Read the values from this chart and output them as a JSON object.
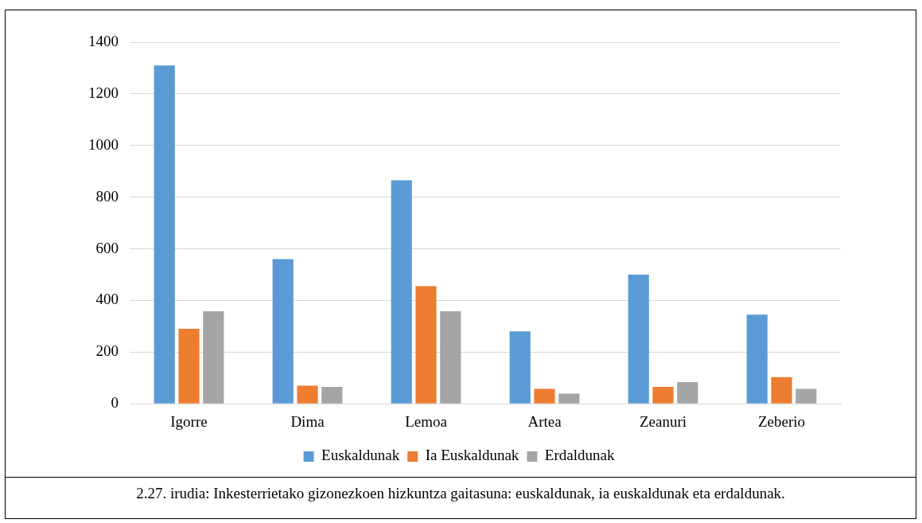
{
  "chart_data": {
    "type": "bar",
    "categories": [
      "Igorre",
      "Dima",
      "Lemoa",
      "Artea",
      "Zeanuri",
      "Zeberio"
    ],
    "series": [
      {
        "name": "Euskaldunak",
        "color": "#5b9bd5",
        "values": [
          1310,
          560,
          865,
          280,
          500,
          345
        ]
      },
      {
        "name": "Ia Euskaldunak",
        "color": "#ed7d31",
        "values": [
          290,
          70,
          455,
          58,
          65,
          103
        ]
      },
      {
        "name": "Erdaldunak",
        "color": "#a5a5a5",
        "values": [
          358,
          65,
          358,
          39,
          84,
          58
        ]
      }
    ],
    "ylim": [
      0,
      1400
    ],
    "yticks": [
      0,
      200,
      400,
      600,
      800,
      1000,
      1200,
      1400
    ],
    "grid": "y",
    "legend": "bottom",
    "annotations": [
      "2.27. irudia: Inkesterrietako gizonezkoen hizkuntza gaitasuna: euskaldunak, ia euskaldunak eta erdaldunak."
    ]
  }
}
